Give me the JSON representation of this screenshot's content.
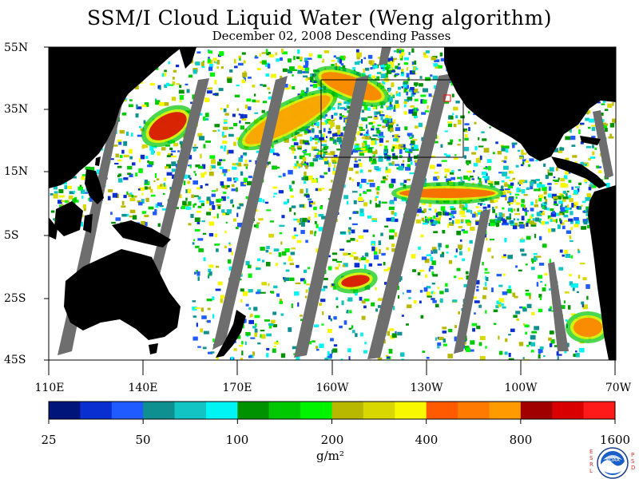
{
  "title": "SSM/I Cloud Liquid Water (Weng algorithm)",
  "subtitle": "December 02, 2008  Descending Passes",
  "latitude_labels": [
    "55N",
    "35N",
    "15N",
    "5S",
    "25S",
    "45S"
  ],
  "longitude_labels": [
    "110E",
    "140E",
    "170E",
    "160W",
    "130W",
    "100W",
    "70W"
  ],
  "colorbar": {
    "labels": [
      "25",
      "50",
      "100",
      "200",
      "400",
      "800",
      "1600"
    ],
    "units": "g/m²",
    "colors": [
      "#00157a",
      "#0a2fd0",
      "#1f5bff",
      "#0f9090",
      "#12c4c4",
      "#00f4f4",
      "#009200",
      "#00c800",
      "#00f400",
      "#b8b800",
      "#d8d800",
      "#f8f800",
      "#ff5a00",
      "#ff7a00",
      "#ff9a00",
      "#a00000",
      "#d80000",
      "#ff1a1a"
    ]
  },
  "map": {
    "land_color": "#000000",
    "swath_gap_color": "#6e6e6e",
    "ocean_no_cloud_color": "#ffffff"
  },
  "logo": {
    "text": "NOAA",
    "left_letters": "ESRL",
    "right_letters": "PSD"
  }
}
